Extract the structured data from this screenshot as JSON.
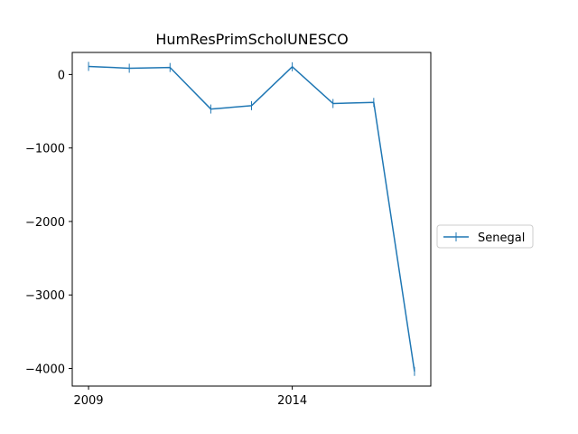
{
  "chart_data": {
    "type": "line",
    "title": "HumResPrimScholUNESCO",
    "xlabel": "",
    "ylabel": "",
    "x": [
      2009,
      2010,
      2011,
      2012,
      2013,
      2014,
      2015,
      2016,
      2017
    ],
    "series": [
      {
        "name": "Senegal",
        "values": [
          110,
          85,
          95,
          -470,
          -425,
          105,
          -395,
          -380,
          -4040
        ]
      }
    ],
    "xlim": [
      2008.6,
      2017.4
    ],
    "ylim": [
      -4240,
      300
    ],
    "x_ticks": [
      2009,
      2014
    ],
    "x_tick_labels": [
      "2009",
      "2014"
    ],
    "y_ticks": [
      0,
      -1000,
      -2000,
      -3000,
      -4000
    ],
    "y_tick_labels": [
      "0",
      "−1000",
      "−2000",
      "−3000",
      "−4000"
    ],
    "grid": false,
    "legend_position": "center-right-outside",
    "colors": {
      "series": "#1f77b4",
      "axes": "#000000"
    },
    "marker": "vertical-line"
  }
}
